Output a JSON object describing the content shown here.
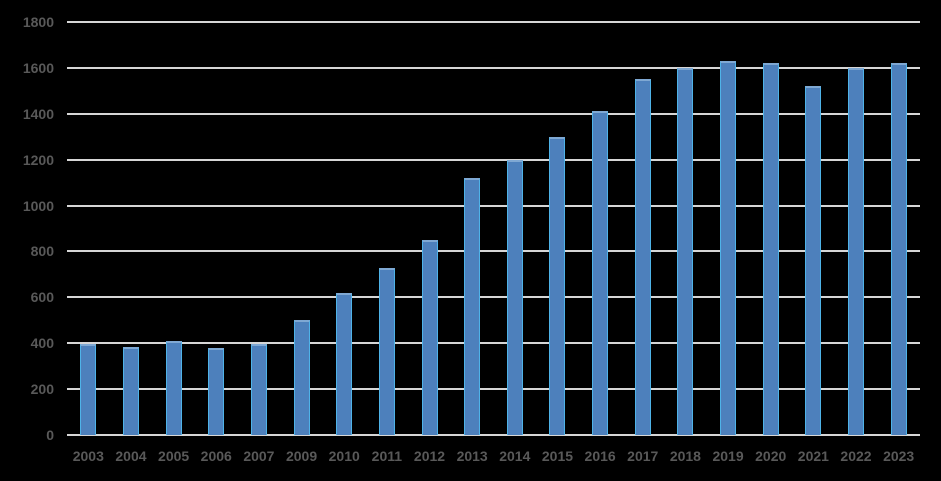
{
  "chart_data": {
    "type": "bar",
    "title": "",
    "xlabel": "",
    "ylabel": "",
    "categories": [
      "2003",
      "2004",
      "2005",
      "2006",
      "2007",
      "2009",
      "2010",
      "2011",
      "2012",
      "2013",
      "2014",
      "2015",
      "2016",
      "2017",
      "2018",
      "2019",
      "2020",
      "2021",
      "2022",
      "2023"
    ],
    "values": [
      395,
      385,
      410,
      380,
      395,
      500,
      620,
      730,
      850,
      1120,
      1200,
      1300,
      1410,
      1550,
      1600,
      1630,
      1620,
      1520,
      1600,
      1620
    ],
    "ylim": [
      0,
      1800
    ],
    "yticks": [
      0,
      200,
      400,
      600,
      800,
      1000,
      1200,
      1400,
      1600,
      1800
    ],
    "ytick_labels": [
      "0",
      "200",
      "400",
      "600",
      "800",
      "1000",
      "1200",
      "1400",
      "1600",
      "1800"
    ],
    "grid": true,
    "legend": false,
    "legend_position": "none"
  },
  "colors": {
    "background": "#000000",
    "bar_fill": "#4d80bc",
    "bar_edge_side": "#4fb3e8",
    "bar_edge_top": "#7fa8d3",
    "gridline": "#d6d6d6",
    "axis_label": "#595959"
  }
}
